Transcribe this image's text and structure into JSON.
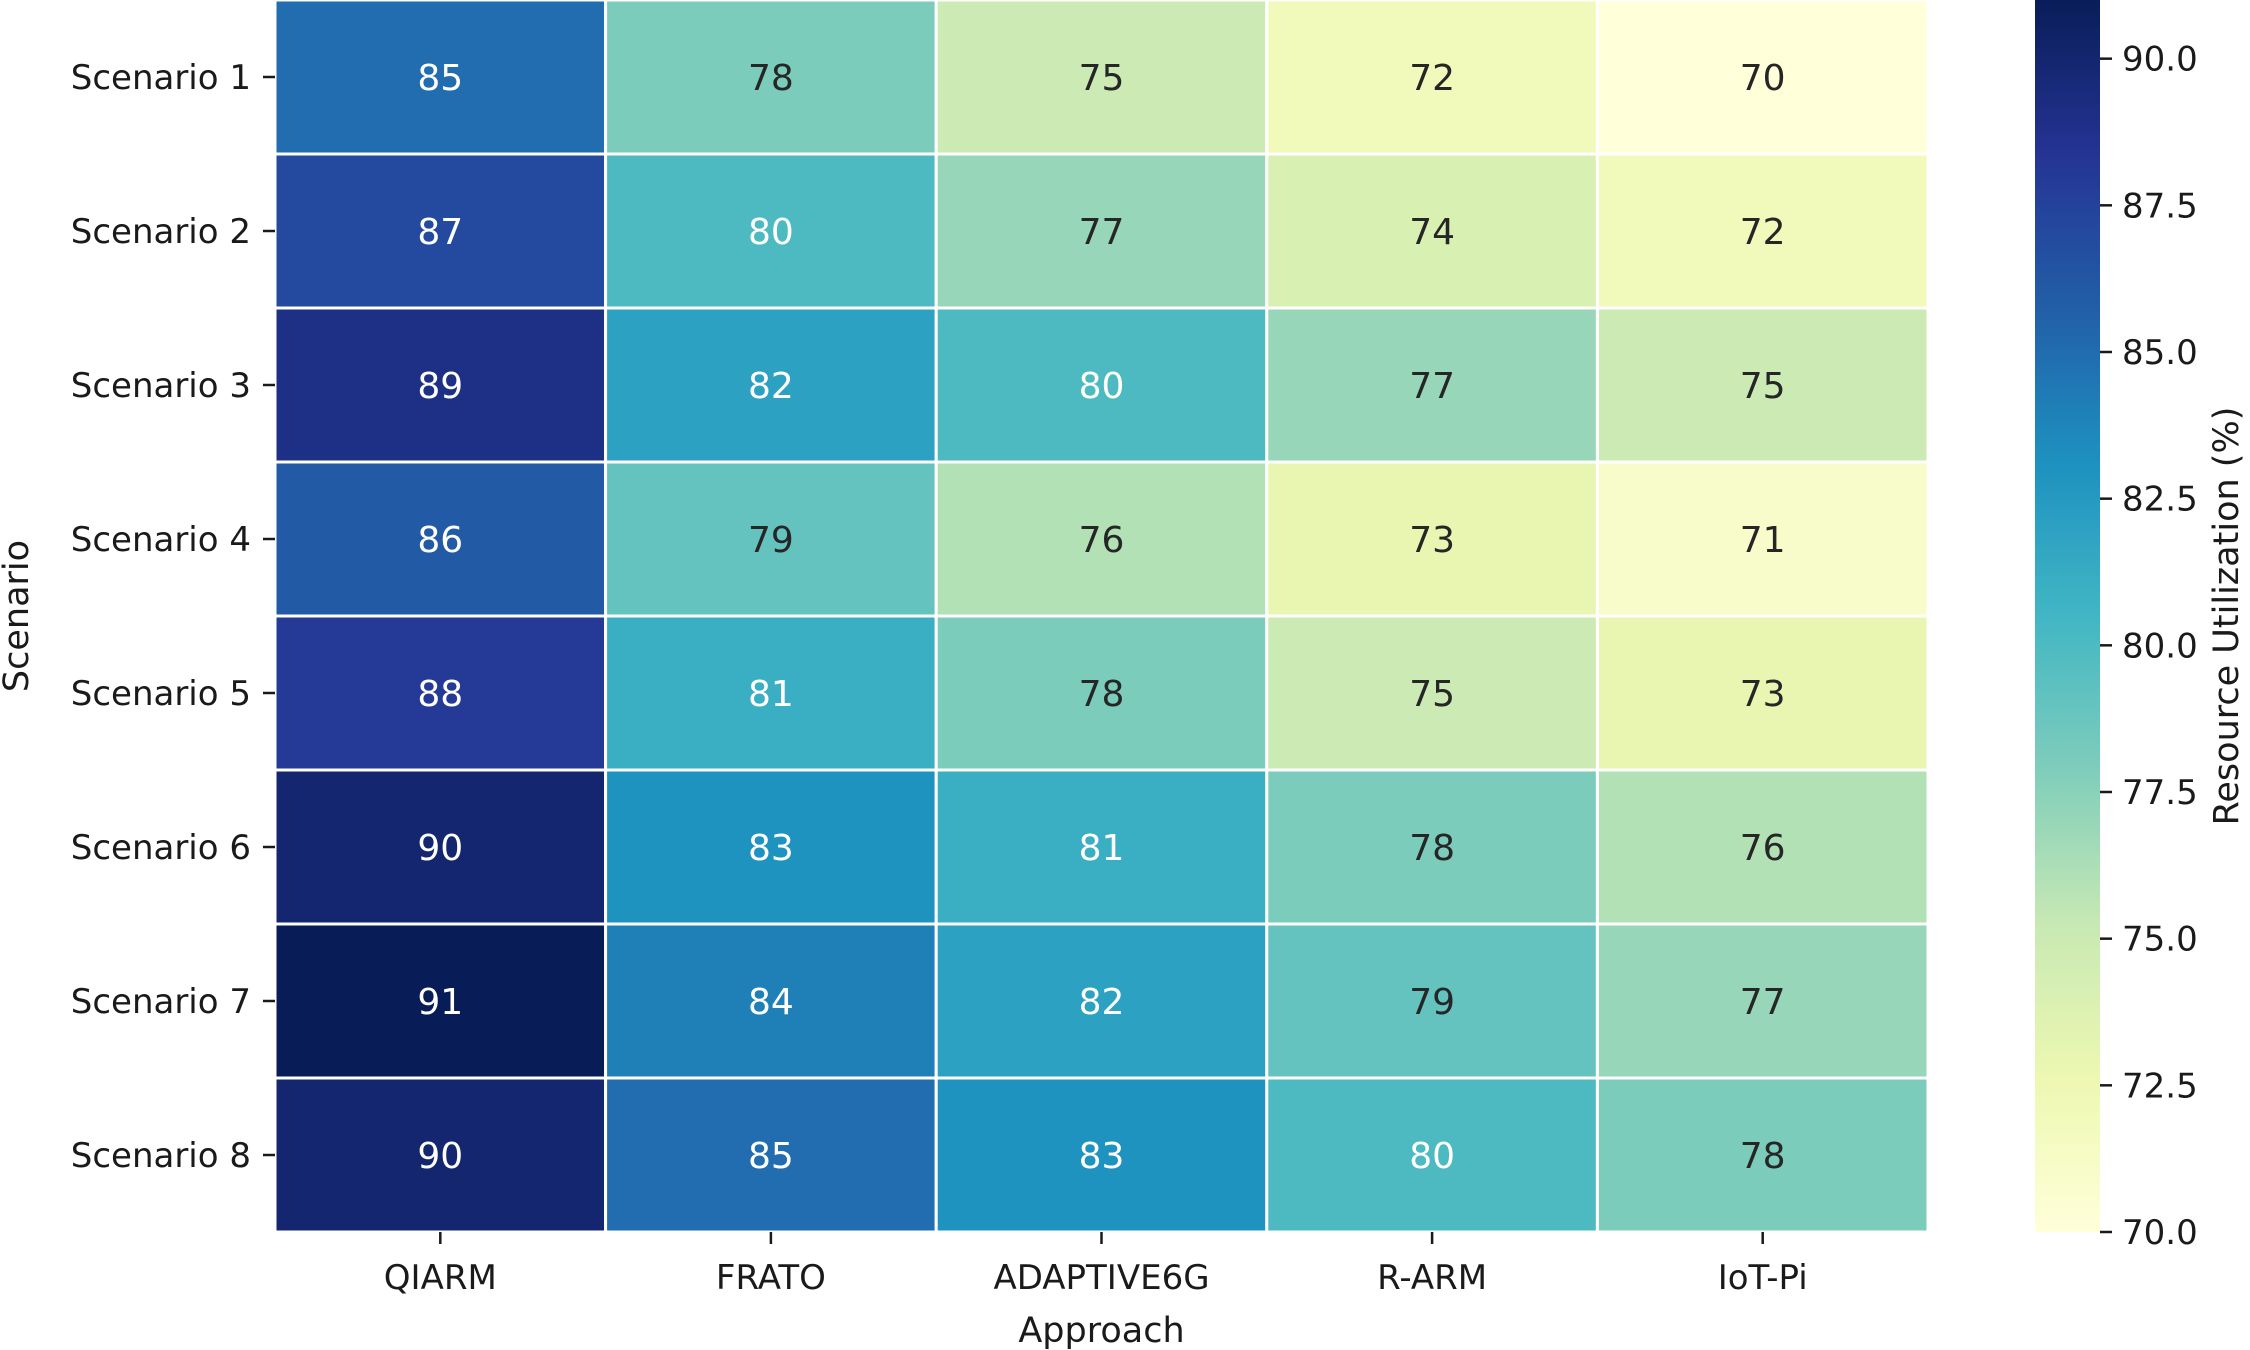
{
  "chart_data": {
    "type": "heatmap",
    "title": "",
    "xlabel": "Approach",
    "ylabel": "Scenario",
    "colorbar_label": "Resource Utilization (%)",
    "x_categories": [
      "QIARM",
      "FRATO",
      "ADAPTIVE6G",
      "R-ARM",
      "IoT-Pi"
    ],
    "y_categories": [
      "Scenario 1",
      "Scenario 2",
      "Scenario 3",
      "Scenario 4",
      "Scenario 5",
      "Scenario 6",
      "Scenario 7",
      "Scenario 8"
    ],
    "values": [
      [
        85,
        78,
        75,
        72,
        70
      ],
      [
        87,
        80,
        77,
        74,
        72
      ],
      [
        89,
        82,
        80,
        77,
        75
      ],
      [
        86,
        79,
        76,
        73,
        71
      ],
      [
        88,
        81,
        78,
        75,
        73
      ],
      [
        90,
        83,
        81,
        78,
        76
      ],
      [
        91,
        84,
        82,
        79,
        77
      ],
      [
        90,
        85,
        83,
        80,
        78
      ]
    ],
    "colorbar_range": [
      70,
      91
    ],
    "colorbar_ticks": [
      "70.0",
      "72.5",
      "75.0",
      "77.5",
      "80.0",
      "82.5",
      "85.0",
      "87.5",
      "90.0"
    ],
    "colormap": "YlGnBu",
    "annotations": true,
    "cell_border_color": "#ffffff"
  }
}
